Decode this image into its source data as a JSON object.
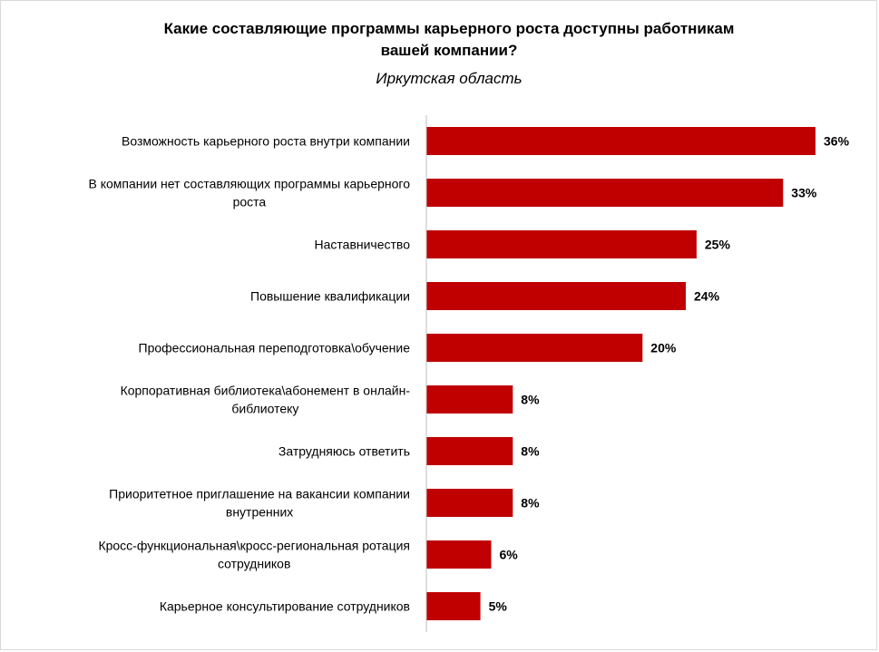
{
  "chart_data": {
    "type": "bar",
    "orientation": "horizontal",
    "title_lines": [
      "Какие составляющие программы  карьерного роста доступны работникам",
      "вашей компании?"
    ],
    "subtitle": "Иркутская область",
    "categories": [
      [
        "Возможность карьерного роста внутри компании"
      ],
      [
        "В компании нет составляющих программы карьерного",
        "роста"
      ],
      [
        "Наставничество"
      ],
      [
        "Повышение квалификации"
      ],
      [
        "Профессиональная переподготовка\\обучение"
      ],
      [
        "Корпоративная библиотека\\абонемент в онлайн-",
        "библиотеку"
      ],
      [
        "Затрудняюсь ответить"
      ],
      [
        "Приоритетное приглашение на вакансии компании",
        "внутренних"
      ],
      [
        "Кросс-функциональная\\кросс-региональная ротация",
        "сотрудников"
      ],
      [
        "Карьерное консультирование сотрудников"
      ]
    ],
    "values": [
      36,
      33,
      25,
      24,
      20,
      8,
      8,
      8,
      6,
      5
    ],
    "value_labels": [
      "36%",
      "33%",
      "25%",
      "24%",
      "20%",
      "8%",
      "8%",
      "8%",
      "6%",
      "5%"
    ],
    "unit": "%",
    "bar_color": "#c00000",
    "axis_color": "#bfbfbf",
    "grid": false,
    "legend": "none"
  }
}
